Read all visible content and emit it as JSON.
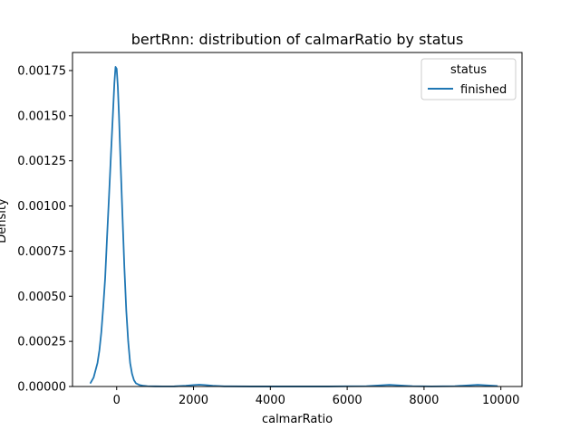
{
  "chart_data": {
    "type": "line",
    "title": "bertRnn: distribution of calmarRatio by status",
    "xlabel": "calmarRatio",
    "ylabel": "Density",
    "xlim": [
      -1150,
      10550
    ],
    "ylim": [
      0,
      0.00185
    ],
    "xticks": [
      0,
      2000,
      4000,
      6000,
      8000,
      10000
    ],
    "xtick_labels": [
      "0",
      "2000",
      "4000",
      "6000",
      "8000",
      "10000"
    ],
    "yticks": [
      0,
      0.00025,
      0.0005,
      0.00075,
      0.001,
      0.00125,
      0.0015,
      0.00175
    ],
    "ytick_labels": [
      "0.00000",
      "0.00025",
      "0.00050",
      "0.00075",
      "0.00100",
      "0.00125",
      "0.00150",
      "0.00175"
    ],
    "grid": false,
    "legend": {
      "title": "status",
      "placement": "top-right"
    },
    "series": [
      {
        "name": "finished",
        "color": "#1f77b4",
        "x": [
          -680,
          -600,
          -500,
          -450,
          -400,
          -350,
          -300,
          -250,
          -200,
          -150,
          -100,
          -60,
          -30,
          0,
          30,
          60,
          100,
          150,
          200,
          250,
          300,
          350,
          400,
          450,
          500,
          600,
          700,
          800,
          1000,
          1200,
          1500,
          1800,
          2000,
          2150,
          2300,
          2500,
          2800,
          3500,
          4500,
          5500,
          6500,
          6900,
          7100,
          7300,
          7700,
          8200,
          8800,
          9200,
          9400,
          9600,
          9900
        ],
        "y": [
          2e-05,
          5e-05,
          0.00013,
          0.0002,
          0.0003,
          0.00044,
          0.0006,
          0.00083,
          0.00105,
          0.00128,
          0.0015,
          0.00168,
          0.00177,
          0.00176,
          0.00166,
          0.0015,
          0.00125,
          0.00095,
          0.00066,
          0.00042,
          0.00025,
          0.00013,
          7e-05,
          3.5e-05,
          1.8e-05,
          8e-06,
          4e-06,
          2e-06,
          1e-06,
          5e-07,
          1e-06,
          4e-06,
          8e-06,
          1e-05,
          8e-06,
          4e-06,
          1e-06,
          3e-07,
          3e-07,
          3e-07,
          2e-06,
          7e-06,
          9e-06,
          7e-06,
          2e-06,
          5e-07,
          2e-06,
          7e-06,
          9e-06,
          7e-06,
          3e-06
        ]
      }
    ]
  }
}
